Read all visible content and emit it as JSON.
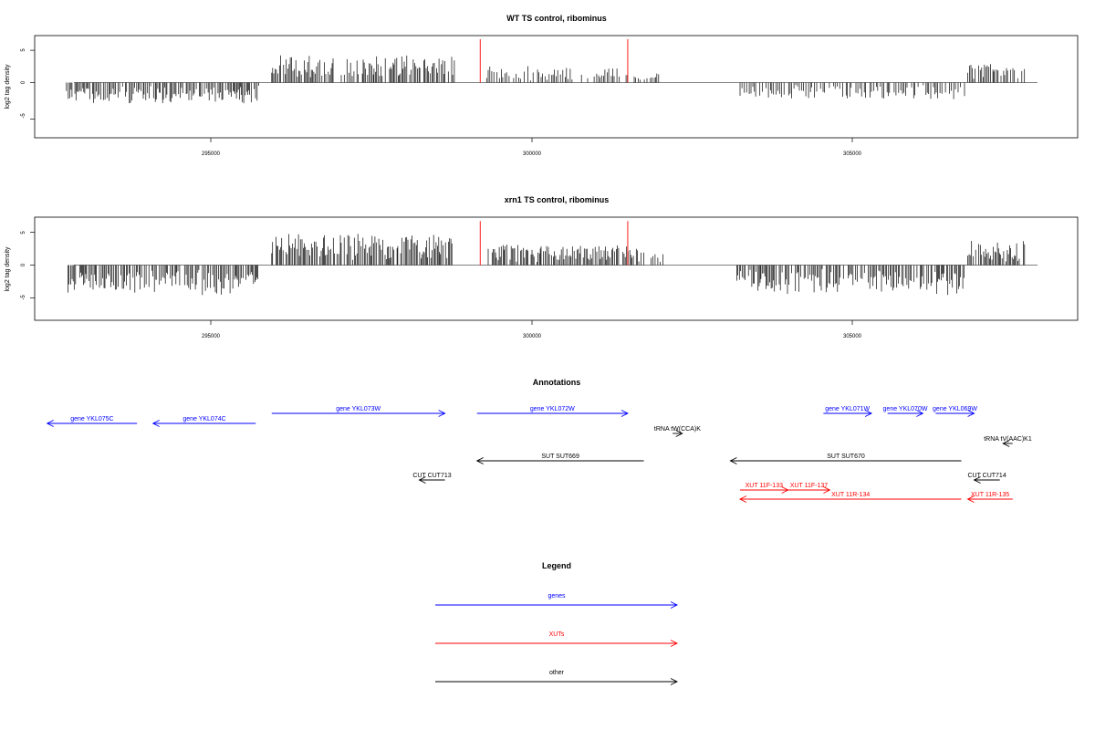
{
  "colors": {
    "genes": "#0000ff",
    "xuts": "#ff0000",
    "other": "#000000"
  },
  "chart_data": [
    {
      "type": "bar",
      "title": "WT TS control, ribominus",
      "ylabel": "log2 tag density",
      "xlim": [
        292700,
        308000
      ],
      "ylim": [
        -8,
        7
      ],
      "x_ticks": [
        295000,
        300000,
        305000
      ],
      "y_ticks": [
        -5,
        0,
        5
      ],
      "regions": [
        {
          "from": 292750,
          "to": 294150,
          "mean": -2.0
        },
        {
          "from": 294150,
          "to": 295750,
          "mean": -2.1
        },
        {
          "from": 295950,
          "to": 298800,
          "mean": 2.6
        },
        {
          "from": 299300,
          "to": 301550,
          "mean": 1.5
        },
        {
          "from": 301600,
          "to": 302000,
          "mean": 1.0
        },
        {
          "from": 303250,
          "to": 306750,
          "mean": -1.6
        },
        {
          "from": 306800,
          "to": 307700,
          "mean": 2.2
        }
      ],
      "highlight_bars": [
        {
          "x": 299200,
          "value": 6.7
        },
        {
          "x": 301500,
          "value": 6.7
        }
      ]
    },
    {
      "type": "bar",
      "title": "xrn1 TS control, ribominus",
      "ylabel": "log2 tag density",
      "xlim": [
        292700,
        308000
      ],
      "ylim": [
        -8,
        7
      ],
      "x_ticks": [
        295000,
        300000,
        305000
      ],
      "y_ticks": [
        -5,
        0,
        5
      ],
      "regions": [
        {
          "from": 292750,
          "to": 294150,
          "mean": -2.6
        },
        {
          "from": 294150,
          "to": 295750,
          "mean": -2.8
        },
        {
          "from": 295950,
          "to": 298800,
          "mean": 3.0
        },
        {
          "from": 299300,
          "to": 301650,
          "mean": 2.0
        },
        {
          "from": 301650,
          "to": 302050,
          "mean": 1.5
        },
        {
          "from": 303200,
          "to": 306750,
          "mean": -2.8
        },
        {
          "from": 306800,
          "to": 307700,
          "mean": 2.4
        }
      ],
      "highlight_bars": [
        {
          "x": 299200,
          "value": 6.7
        },
        {
          "x": 301500,
          "value": 6.7
        }
      ]
    }
  ],
  "annotations": {
    "title": "Annotations",
    "features": [
      {
        "label": "gene YKL075C",
        "type": "genes",
        "start": 293850,
        "end": 292450,
        "row": 1
      },
      {
        "label": "gene YKL074C",
        "type": "genes",
        "start": 295700,
        "end": 294100,
        "row": 1
      },
      {
        "label": "gene YKL073W",
        "type": "genes",
        "start": 295950,
        "end": 298650,
        "row": 0
      },
      {
        "label": "gene YKL072W",
        "type": "genes",
        "start": 299150,
        "end": 301500,
        "row": 0
      },
      {
        "label": "tRNA tW(CCA)K",
        "type": "other",
        "start": 302200,
        "end": 302350,
        "row": 2
      },
      {
        "label": "gene YKL071W",
        "type": "genes",
        "start": 304550,
        "end": 305300,
        "row": 0
      },
      {
        "label": "gene YKL070W",
        "type": "genes",
        "start": 305550,
        "end": 306100,
        "row": 0
      },
      {
        "label": "gene YKL069W",
        "type": "genes",
        "start": 306300,
        "end": 306900,
        "row": 0
      },
      {
        "label": "tRNA tV(AAC)K1",
        "type": "other",
        "start": 307500,
        "end": 307350,
        "row": 3
      },
      {
        "label": "SUT SUT669",
        "type": "other",
        "start": 301750,
        "end": 299150,
        "row": 4
      },
      {
        "label": "SUT SUT670",
        "type": "other",
        "start": 306700,
        "end": 303100,
        "row": 4
      },
      {
        "label": "CUT CUT713",
        "type": "other",
        "start": 298650,
        "end": 298250,
        "row": 5
      },
      {
        "label": "CUT CUT714",
        "type": "other",
        "start": 307300,
        "end": 306900,
        "row": 5
      },
      {
        "label": "XUT 11F-133",
        "type": "xuts",
        "start": 303250,
        "end": 304000,
        "row": 6
      },
      {
        "label": "XUT 11F-137",
        "type": "xuts",
        "start": 304000,
        "end": 304650,
        "row": 6
      },
      {
        "label": "XUT 11R-134",
        "type": "xuts",
        "start": 306700,
        "end": 303250,
        "row": 7
      },
      {
        "label": "XUT 11R-135",
        "type": "xuts",
        "start": 307500,
        "end": 306800,
        "row": 7
      }
    ]
  },
  "legend": {
    "title": "Legend",
    "entries": [
      {
        "label": "genes",
        "type": "genes"
      },
      {
        "label": "XUTs",
        "type": "xuts"
      },
      {
        "label": "other",
        "type": "other"
      }
    ]
  }
}
